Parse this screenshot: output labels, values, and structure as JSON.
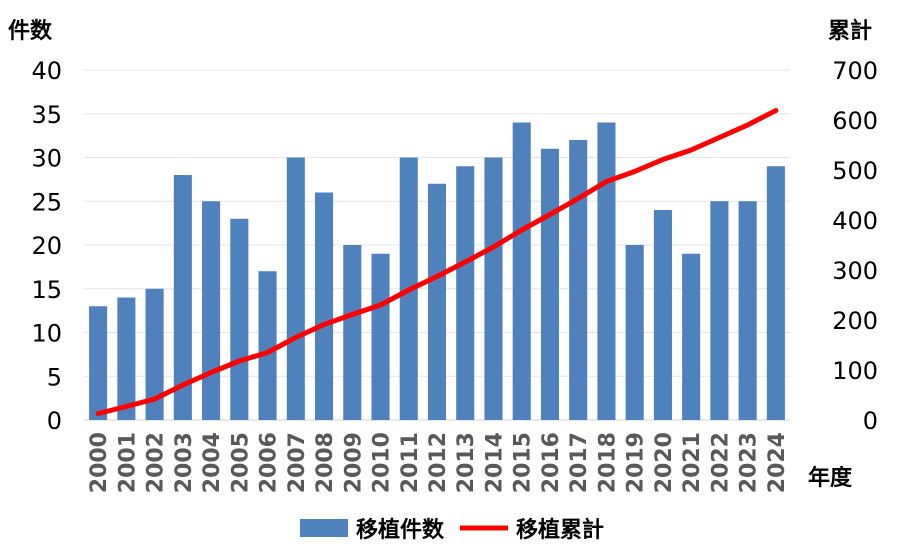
{
  "chart_data": {
    "type": "bar+line",
    "categories": [
      "2000",
      "2001",
      "2002",
      "2003",
      "2004",
      "2005",
      "2006",
      "2007",
      "2008",
      "2009",
      "2010",
      "2011",
      "2012",
      "2013",
      "2014",
      "2015",
      "2016",
      "2017",
      "2018",
      "2019",
      "2020",
      "2021",
      "2022",
      "2023",
      "2024"
    ],
    "series": [
      {
        "name": "移植件数",
        "type": "bar",
        "axis": "left",
        "color": "#4f81bd",
        "values": [
          13,
          14,
          15,
          28,
          25,
          23,
          17,
          30,
          26,
          20,
          19,
          30,
          27,
          29,
          30,
          34,
          31,
          32,
          34,
          20,
          24,
          19,
          25,
          25,
          29
        ]
      },
      {
        "name": "移植累計",
        "type": "line",
        "axis": "right",
        "color": "#ff0000",
        "values": [
          13,
          27,
          42,
          70,
          95,
          118,
          135,
          165,
          191,
          211,
          230,
          260,
          287,
          316,
          346,
          380,
          411,
          443,
          477,
          497,
          521,
          540,
          565,
          590,
          619
        ]
      }
    ],
    "y_left": {
      "label": "件数",
      "min": 0,
      "max": 40,
      "ticks": [
        0,
        5,
        10,
        15,
        20,
        25,
        30,
        35,
        40
      ]
    },
    "y_right": {
      "label": "累計",
      "min": 0,
      "max": 700,
      "ticks": [
        0,
        100,
        200,
        300,
        400,
        500,
        600,
        700
      ]
    },
    "xlabel": "年度",
    "grid": true,
    "legend_position": "bottom"
  }
}
